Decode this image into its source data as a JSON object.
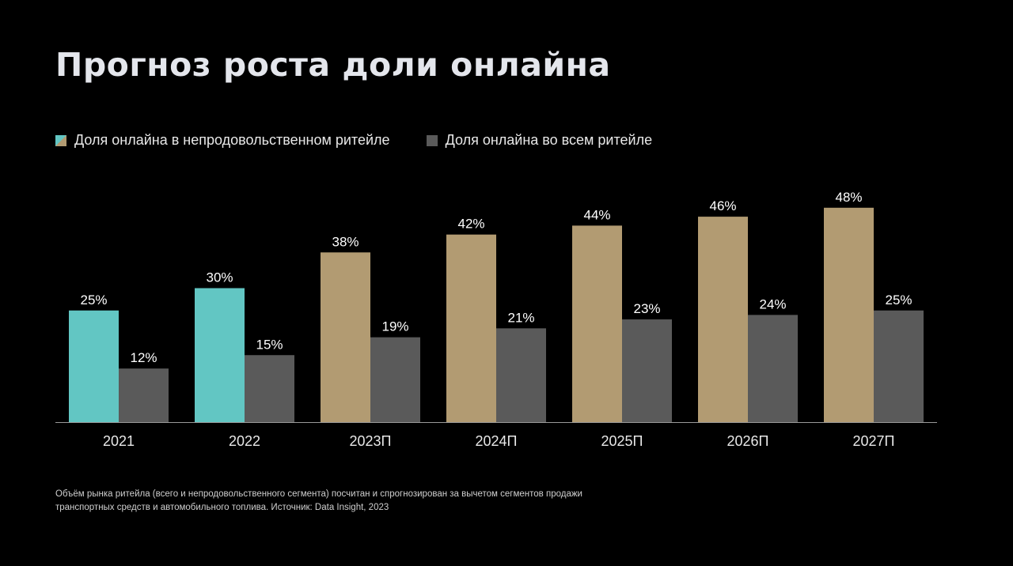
{
  "title": "Прогноз роста доли онлайна",
  "legend": {
    "items": [
      {
        "label": "Доля онлайна в непродовольственном ритейле",
        "icon": "split-teal-tan-square"
      },
      {
        "label": "Доля онлайна во всем ритейле",
        "icon": "gray-square"
      }
    ]
  },
  "colors": {
    "actual": "#62c6c3",
    "forecast": "#b29b72",
    "total": "#5a5a5a",
    "axis": "#9a9a9a",
    "background": "#000000"
  },
  "chart_data": {
    "type": "bar",
    "categories": [
      "2021",
      "2022",
      "2023П",
      "2024П",
      "2025П",
      "2026П",
      "2027П"
    ],
    "series": [
      {
        "name": "Доля онлайна в непродовольственном ритейле",
        "values": [
          25,
          30,
          38,
          42,
          44,
          46,
          48
        ],
        "labels": [
          "25%",
          "30%",
          "38%",
          "42%",
          "44%",
          "46%",
          "48%"
        ]
      },
      {
        "name": "Доля онлайна во всем ритейле",
        "values": [
          12,
          15,
          19,
          21,
          23,
          24,
          25
        ],
        "labels": [
          "12%",
          "15%",
          "19%",
          "21%",
          "23%",
          "24%",
          "25%"
        ]
      }
    ],
    "forecast_from_index": 2,
    "ylim": [
      0,
      50
    ],
    "grid": false,
    "legend_position": "top-left"
  },
  "footnote": {
    "line1": "Объём рынка ритейла (всего и непродовольственного сегмента) посчитан и спрогнозирован за вычетом сегментов продажи",
    "line2": "транспортных средств и автомобильного топлива. Источник: Data Insight, 2023"
  }
}
